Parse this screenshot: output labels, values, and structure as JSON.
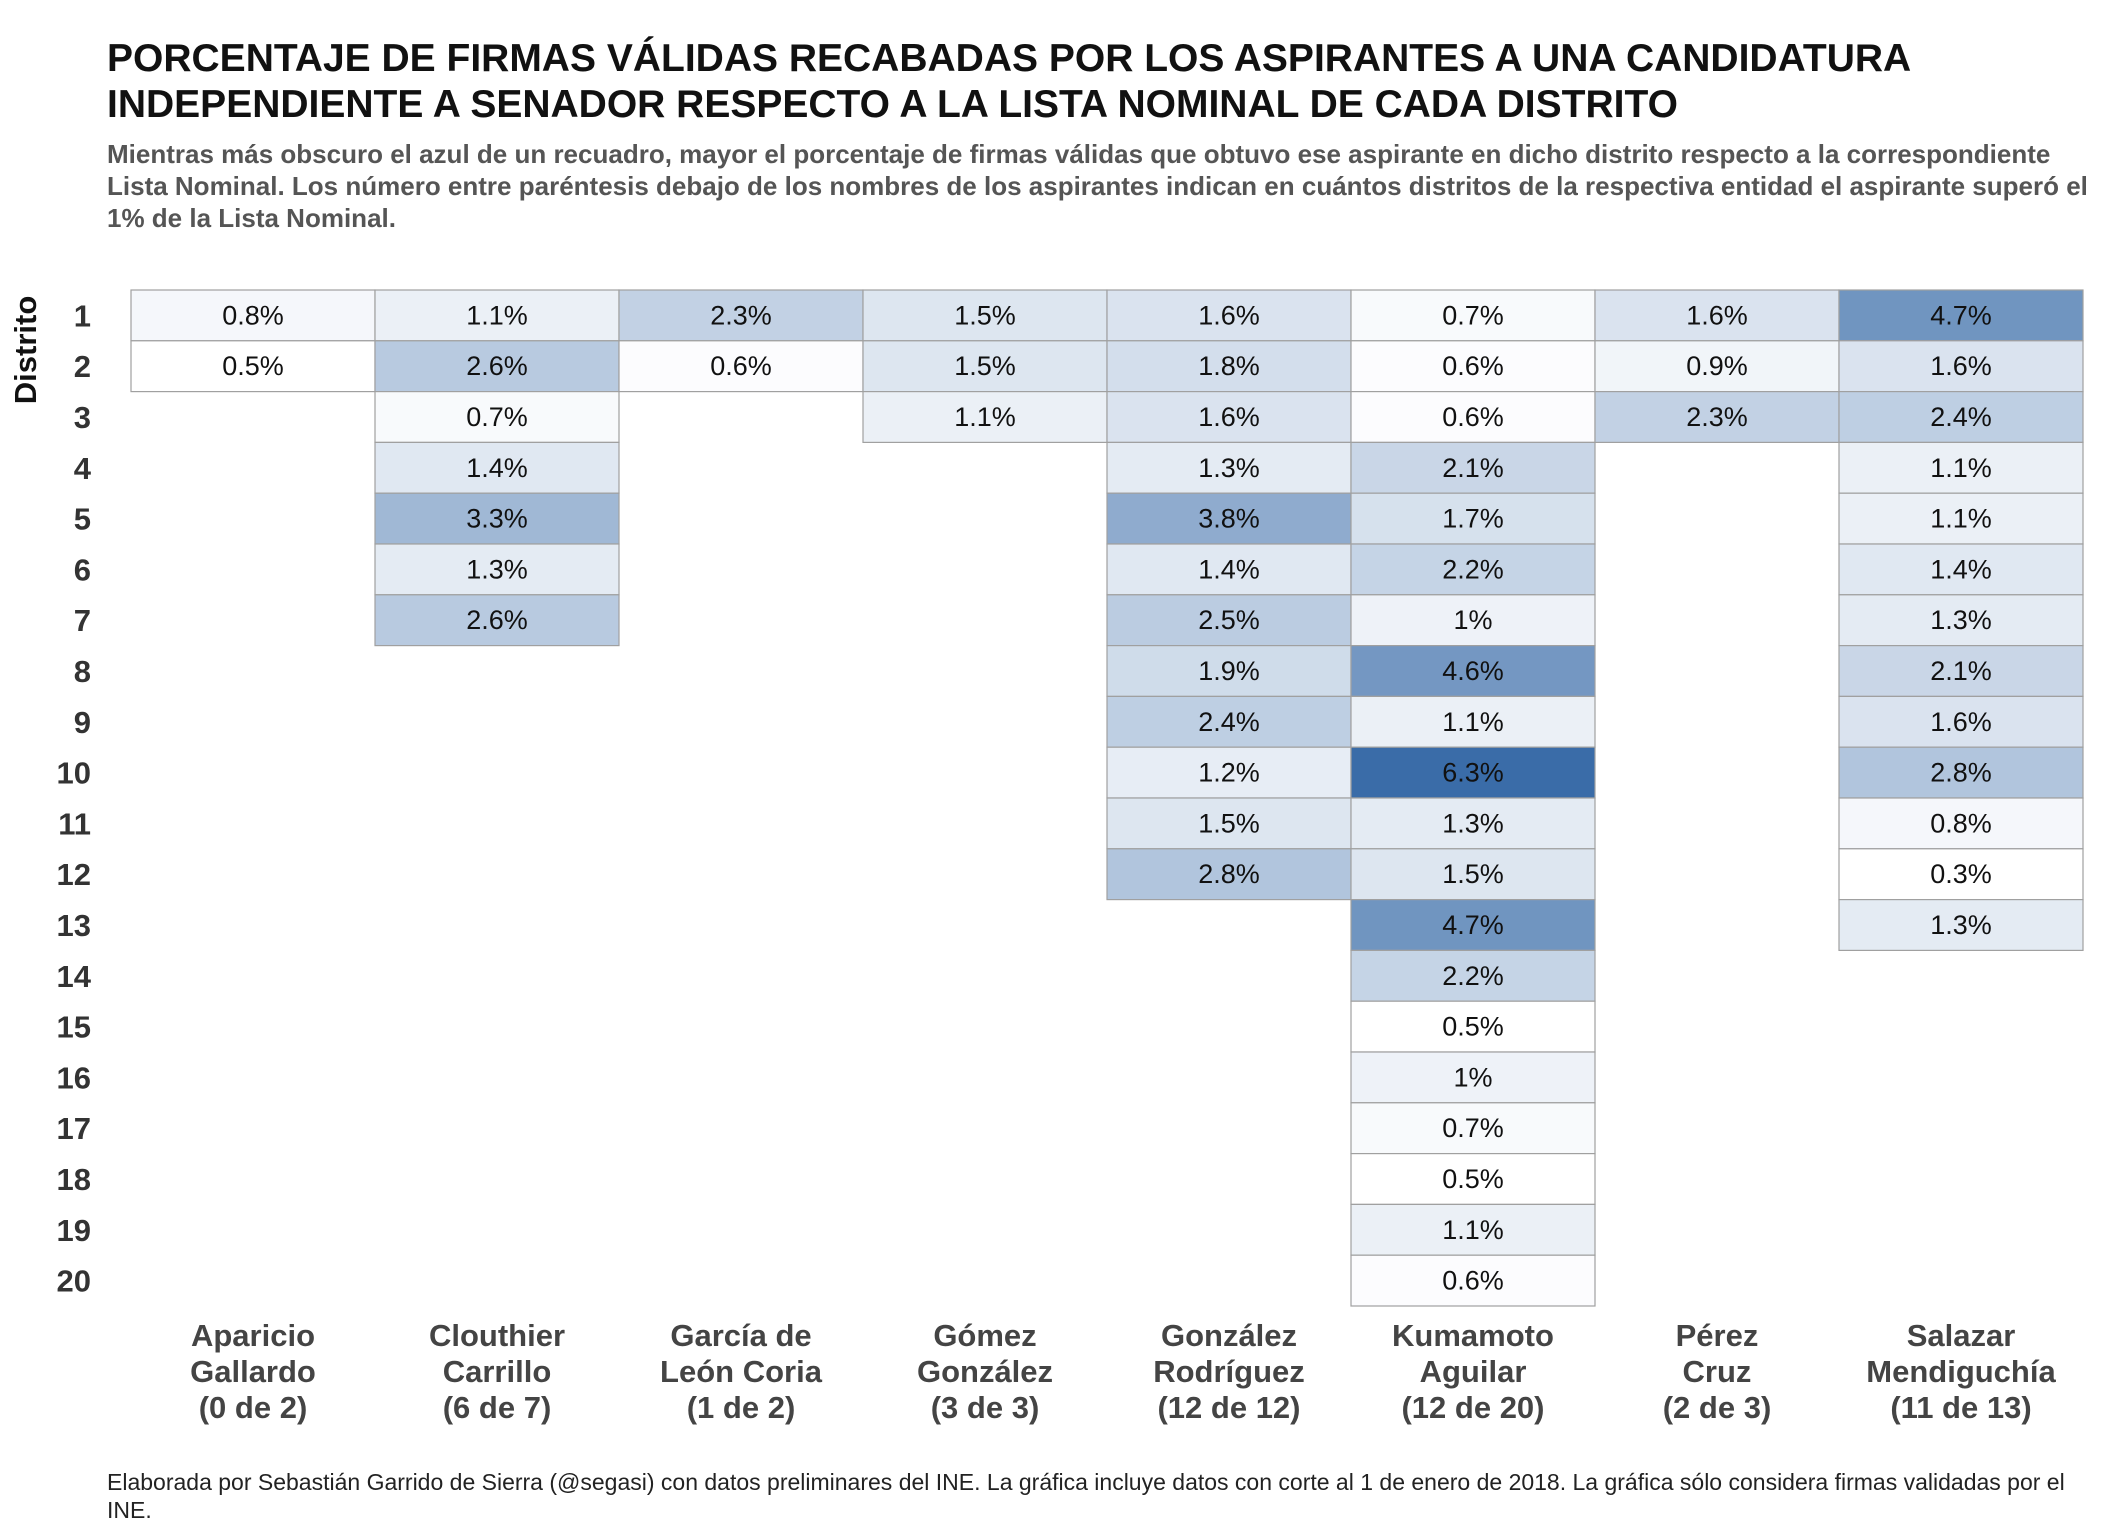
{
  "title": "PORCENTAJE DE FIRMAS VÁLIDAS RECABADAS POR LOS ASPIRANTES A UNA CANDIDATURA INDEPENDIENTE A SENADOR RESPECTO A LA LISTA NOMINAL DE CADA DISTRITO",
  "subtitle": "Mientras más obscuro el azul de un recuadro, mayor el porcentaje de firmas válidas que obtuvo ese aspirante en dicho distrito respecto a la correspondiente Lista Nominal. Los número entre paréntesis debajo de los nombres de los aspirantes indican en cuántos distritos de la respectiva entidad el aspirante superó el 1% de la Lista Nominal.",
  "caption": "Elaborada por Sebastián Garrido de Sierra (@segasi) con datos preliminares del INE. La gráfica incluye datos con corte al 1 de enero de 2018. La gráfica sólo considera firmas validadas por el INE.",
  "chart_data": {
    "type": "heatmap",
    "ylabel": "Distrito",
    "xlabel": "",
    "y_categories": [
      "1",
      "2",
      "3",
      "4",
      "5",
      "6",
      "7",
      "8",
      "9",
      "10",
      "11",
      "12",
      "13",
      "14",
      "15",
      "16",
      "17",
      "18",
      "19",
      "20"
    ],
    "colors": {
      "low": "#ffffff",
      "high": "#3a6ca8",
      "border": "#a0a0a0"
    },
    "color_range": [
      0.5,
      6.3
    ],
    "candidates": [
      {
        "name_lines": [
          "Aparicio",
          "Gallardo",
          "(0 de 2)"
        ],
        "values": [
          0.8,
          0.5
        ],
        "labels": [
          "0.8%",
          "0.5%"
        ]
      },
      {
        "name_lines": [
          "Clouthier",
          "Carrillo",
          "(6 de 7)"
        ],
        "values": [
          1.1,
          2.6,
          0.7,
          1.4,
          3.3,
          1.3,
          2.6
        ],
        "labels": [
          "1.1%",
          "2.6%",
          "0.7%",
          "1.4%",
          "3.3%",
          "1.3%",
          "2.6%"
        ]
      },
      {
        "name_lines": [
          "García de",
          "León Coria",
          "(1 de 2)"
        ],
        "values": [
          2.3,
          0.6
        ],
        "labels": [
          "2.3%",
          "0.6%"
        ]
      },
      {
        "name_lines": [
          "Gómez",
          "González",
          "(3 de 3)"
        ],
        "values": [
          1.5,
          1.5,
          1.1
        ],
        "labels": [
          "1.5%",
          "1.5%",
          "1.1%"
        ]
      },
      {
        "name_lines": [
          "González",
          "Rodríguez",
          "(12 de 12)"
        ],
        "values": [
          1.6,
          1.8,
          1.6,
          1.3,
          3.8,
          1.4,
          2.5,
          1.9,
          2.4,
          1.2,
          1.5,
          2.8
        ],
        "labels": [
          "1.6%",
          "1.8%",
          "1.6%",
          "1.3%",
          "3.8%",
          "1.4%",
          "2.5%",
          "1.9%",
          "2.4%",
          "1.2%",
          "1.5%",
          "2.8%"
        ]
      },
      {
        "name_lines": [
          "Kumamoto",
          "Aguilar",
          "(12 de 20)"
        ],
        "values": [
          0.7,
          0.6,
          0.6,
          2.1,
          1.7,
          2.2,
          1.0,
          4.6,
          1.1,
          6.3,
          1.3,
          1.5,
          4.7,
          2.2,
          0.5,
          1.0,
          0.7,
          0.5,
          1.1,
          0.6
        ],
        "labels": [
          "0.7%",
          "0.6%",
          "0.6%",
          "2.1%",
          "1.7%",
          "2.2%",
          "1%",
          "4.6%",
          "1.1%",
          "6.3%",
          "1.3%",
          "1.5%",
          "4.7%",
          "2.2%",
          "0.5%",
          "1%",
          "0.7%",
          "0.5%",
          "1.1%",
          "0.6%"
        ]
      },
      {
        "name_lines": [
          "Pérez",
          "Cruz",
          "(2 de 3)"
        ],
        "values": [
          1.6,
          0.9,
          2.3
        ],
        "labels": [
          "1.6%",
          "0.9%",
          "2.3%"
        ]
      },
      {
        "name_lines": [
          "Salazar",
          "Mendiguchía",
          "(11 de 13)"
        ],
        "values": [
          4.7,
          1.6,
          2.4,
          1.1,
          1.1,
          1.4,
          1.3,
          2.1,
          1.6,
          2.8,
          0.8,
          0.3,
          1.3
        ],
        "labels": [
          "4.7%",
          "1.6%",
          "2.4%",
          "1.1%",
          "1.1%",
          "1.4%",
          "1.3%",
          "2.1%",
          "1.6%",
          "2.8%",
          "0.8%",
          "0.3%",
          "1.3%"
        ]
      }
    ]
  }
}
